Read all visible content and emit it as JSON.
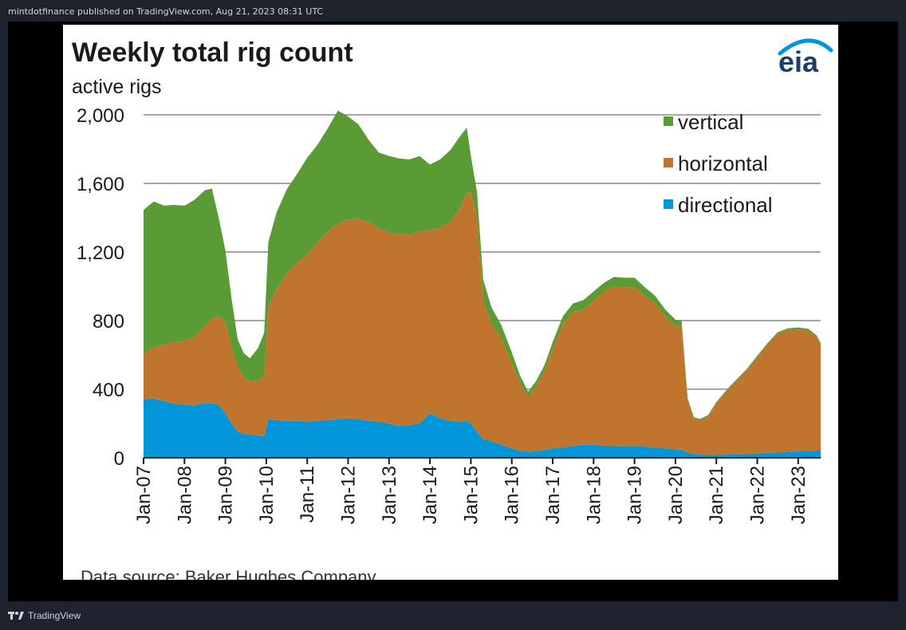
{
  "header": {
    "published_line": "mintdotfinance published on TradingView.com, Aug 21, 2023 08:31 UTC"
  },
  "footer": {
    "brand": "TradingView"
  },
  "logo": {
    "text": "eia",
    "color": "#1b3e6b",
    "arc_color": "#0096d6"
  },
  "chart_data": {
    "type": "area",
    "stacked": true,
    "title": "Weekly total rig count",
    "ylabel": "active rigs",
    "source": "Data source: Baker Hughes Company",
    "ylim": [
      0,
      2000
    ],
    "xlim": [
      2007,
      2023.55
    ],
    "yticks": [
      0,
      400,
      800,
      1200,
      1600,
      2000
    ],
    "ytick_labels": [
      "0",
      "400",
      "800",
      "1,200",
      "1,600",
      "2,000"
    ],
    "xticks": [
      2007,
      2008,
      2009,
      2010,
      2011,
      2012,
      2013,
      2014,
      2015,
      2016,
      2017,
      2018,
      2019,
      2020,
      2021,
      2022,
      2023
    ],
    "xtick_labels": [
      "Jan-07",
      "Jan-08",
      "Jan-09",
      "Jan-10",
      "Jan-11",
      "Jan-12",
      "Jan-13",
      "Jan-14",
      "Jan-15",
      "Jan-16",
      "Jan-17",
      "Jan-18",
      "Jan-19",
      "Jan-20",
      "Jan-21",
      "Jan-22",
      "Jan-23"
    ],
    "grid": true,
    "legend_position": "top-right",
    "x": [
      2007.0,
      2007.25,
      2007.5,
      2007.75,
      2008.0,
      2008.25,
      2008.5,
      2008.67,
      2008.85,
      2009.0,
      2009.15,
      2009.3,
      2009.45,
      2009.6,
      2009.8,
      2009.95,
      2010.05,
      2010.25,
      2010.5,
      2010.75,
      2011.0,
      2011.25,
      2011.5,
      2011.75,
      2012.0,
      2012.25,
      2012.5,
      2012.75,
      2013.0,
      2013.25,
      2013.5,
      2013.75,
      2014.0,
      2014.25,
      2014.5,
      2014.75,
      2014.9,
      2015.0,
      2015.15,
      2015.3,
      2015.5,
      2015.75,
      2016.0,
      2016.2,
      2016.4,
      2016.6,
      2016.8,
      2017.0,
      2017.25,
      2017.5,
      2017.75,
      2018.0,
      2018.25,
      2018.5,
      2018.75,
      2019.0,
      2019.25,
      2019.5,
      2019.75,
      2020.0,
      2020.15,
      2020.3,
      2020.45,
      2020.6,
      2020.8,
      2021.0,
      2021.25,
      2021.5,
      2021.75,
      2022.0,
      2022.25,
      2022.5,
      2022.75,
      2023.0,
      2023.25,
      2023.45,
      2023.55
    ],
    "series": [
      {
        "name": "directional",
        "color": "#0096d7",
        "values": [
          340,
          345,
          330,
          315,
          310,
          305,
          320,
          320,
          305,
          260,
          200,
          150,
          140,
          135,
          130,
          125,
          225,
          220,
          215,
          215,
          210,
          215,
          220,
          225,
          230,
          225,
          215,
          210,
          200,
          185,
          190,
          200,
          260,
          230,
          215,
          210,
          215,
          200,
          150,
          110,
          95,
          75,
          55,
          40,
          35,
          40,
          45,
          55,
          60,
          70,
          75,
          75,
          70,
          70,
          65,
          65,
          65,
          60,
          55,
          50,
          45,
          30,
          22,
          18,
          16,
          16,
          18,
          20,
          22,
          25,
          28,
          32,
          35,
          38,
          40,
          42,
          42
        ]
      },
      {
        "name": "horizontal",
        "color": "#c0752f",
        "values": [
          265,
          300,
          330,
          360,
          370,
          400,
          450,
          490,
          520,
          530,
          450,
          380,
          330,
          310,
          320,
          355,
          665,
          760,
          860,
          920,
          980,
          1040,
          1100,
          1140,
          1160,
          1170,
          1160,
          1130,
          1110,
          1120,
          1110,
          1120,
          1070,
          1110,
          1160,
          1250,
          1330,
          1350,
          1250,
          810,
          690,
          620,
          500,
          400,
          320,
          380,
          460,
          580,
          720,
          780,
          790,
          840,
          900,
          930,
          930,
          930,
          880,
          840,
          770,
          720,
          720,
          300,
          205,
          200,
          225,
          300,
          370,
          430,
          490,
          560,
          630,
          690,
          710,
          710,
          700,
          660,
          615
        ]
      },
      {
        "name": "vertical",
        "color": "#5a9b35",
        "values": [
          840,
          850,
          810,
          800,
          790,
          800,
          790,
          760,
          560,
          420,
          280,
          160,
          140,
          135,
          190,
          250,
          370,
          450,
          490,
          520,
          560,
          570,
          600,
          660,
          600,
          550,
          480,
          440,
          450,
          440,
          440,
          440,
          380,
          400,
          420,
          420,
          380,
          210,
          150,
          120,
          95,
          75,
          60,
          40,
          30,
          30,
          35,
          40,
          45,
          50,
          55,
          55,
          50,
          55,
          55,
          55,
          50,
          45,
          40,
          35,
          35,
          15,
          10,
          8,
          8,
          8,
          8,
          8,
          8,
          10,
          10,
          10,
          10,
          12,
          12,
          12,
          12
        ]
      }
    ],
    "legend": [
      {
        "name": "vertical",
        "color": "#5a9b35"
      },
      {
        "name": "horizontal",
        "color": "#c0752f"
      },
      {
        "name": "directional",
        "color": "#0096d7"
      }
    ]
  }
}
